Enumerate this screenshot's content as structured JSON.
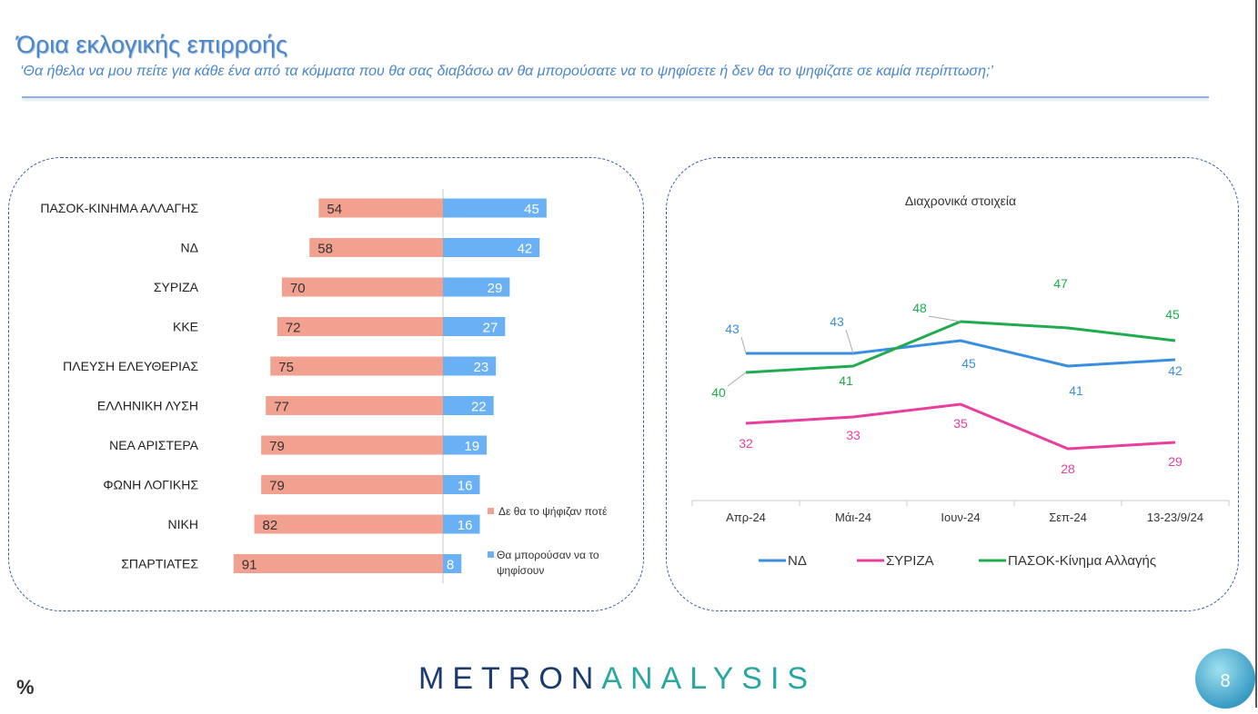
{
  "header": {
    "title": "Όρια εκλογικής επιρροής",
    "subtitle": "‘Θα ήθελα να μου πείτε για κάθε ένα από τα  κόμματα που θα σας διαβάσω αν θα μπορούσατε να το ψηφίσετε ή δεν θα το ψηφίζατε σε καμία περίπτωση;’"
  },
  "footer": {
    "unit": "%",
    "logo_part1": "METRON",
    "logo_part2": "ANALYSIS",
    "page_number": "8"
  },
  "colors": {
    "never": "#f2a090",
    "could": "#6ab0f5",
    "nd": "#3a8ee0",
    "syriza": "#e83e9e",
    "pasok": "#1fab4e"
  },
  "chart_data": [
    {
      "type": "bar",
      "orientation": "horizontal-diverging",
      "categories": [
        "ΠΑΣΟΚ-ΚΙΝΗΜΑ ΑΛΛΑΓΗΣ",
        "ΝΔ",
        "ΣΥΡΙΖΑ",
        "ΚΚΕ",
        "ΠΛΕΥΣΗ ΕΛΕΥΘΕΡΙΑΣ",
        "ΕΛΛΗΝΙΚΗ ΛΥΣΗ",
        "ΝΕΑ ΑΡΙΣΤΕΡΑ",
        "ΦΩΝΗ ΛΟΓΙΚΗΣ",
        "ΝΙΚΗ",
        "ΣΠΑΡΤΙΑΤΕΣ"
      ],
      "series": [
        {
          "name": "Δε θα το ψήφιζαν ποτέ",
          "values": [
            54,
            58,
            70,
            72,
            75,
            77,
            79,
            79,
            82,
            91
          ]
        },
        {
          "name": "Θα μπορούσαν να το ψηφίσουν",
          "values": [
            45,
            42,
            29,
            27,
            23,
            22,
            19,
            16,
            16,
            8
          ]
        }
      ],
      "legend_position": "bottom-right"
    },
    {
      "type": "line",
      "title": "Διαχρονικά στοιχεία",
      "categories": [
        "Απρ-24",
        "Μάι-24",
        "Ιουν-24",
        "Σεπ-24",
        "13-23/9/24"
      ],
      "series": [
        {
          "name": "ΝΔ",
          "values": [
            43,
            43,
            45,
            41,
            42
          ]
        },
        {
          "name": "ΣΥΡΙΖΑ",
          "values": [
            32,
            33,
            35,
            28,
            29
          ]
        },
        {
          "name": "ΠΑΣΟΚ-Κίνημα Αλλαγής",
          "values": [
            40,
            41,
            48,
            47,
            45
          ]
        }
      ],
      "legend_position": "bottom"
    }
  ]
}
